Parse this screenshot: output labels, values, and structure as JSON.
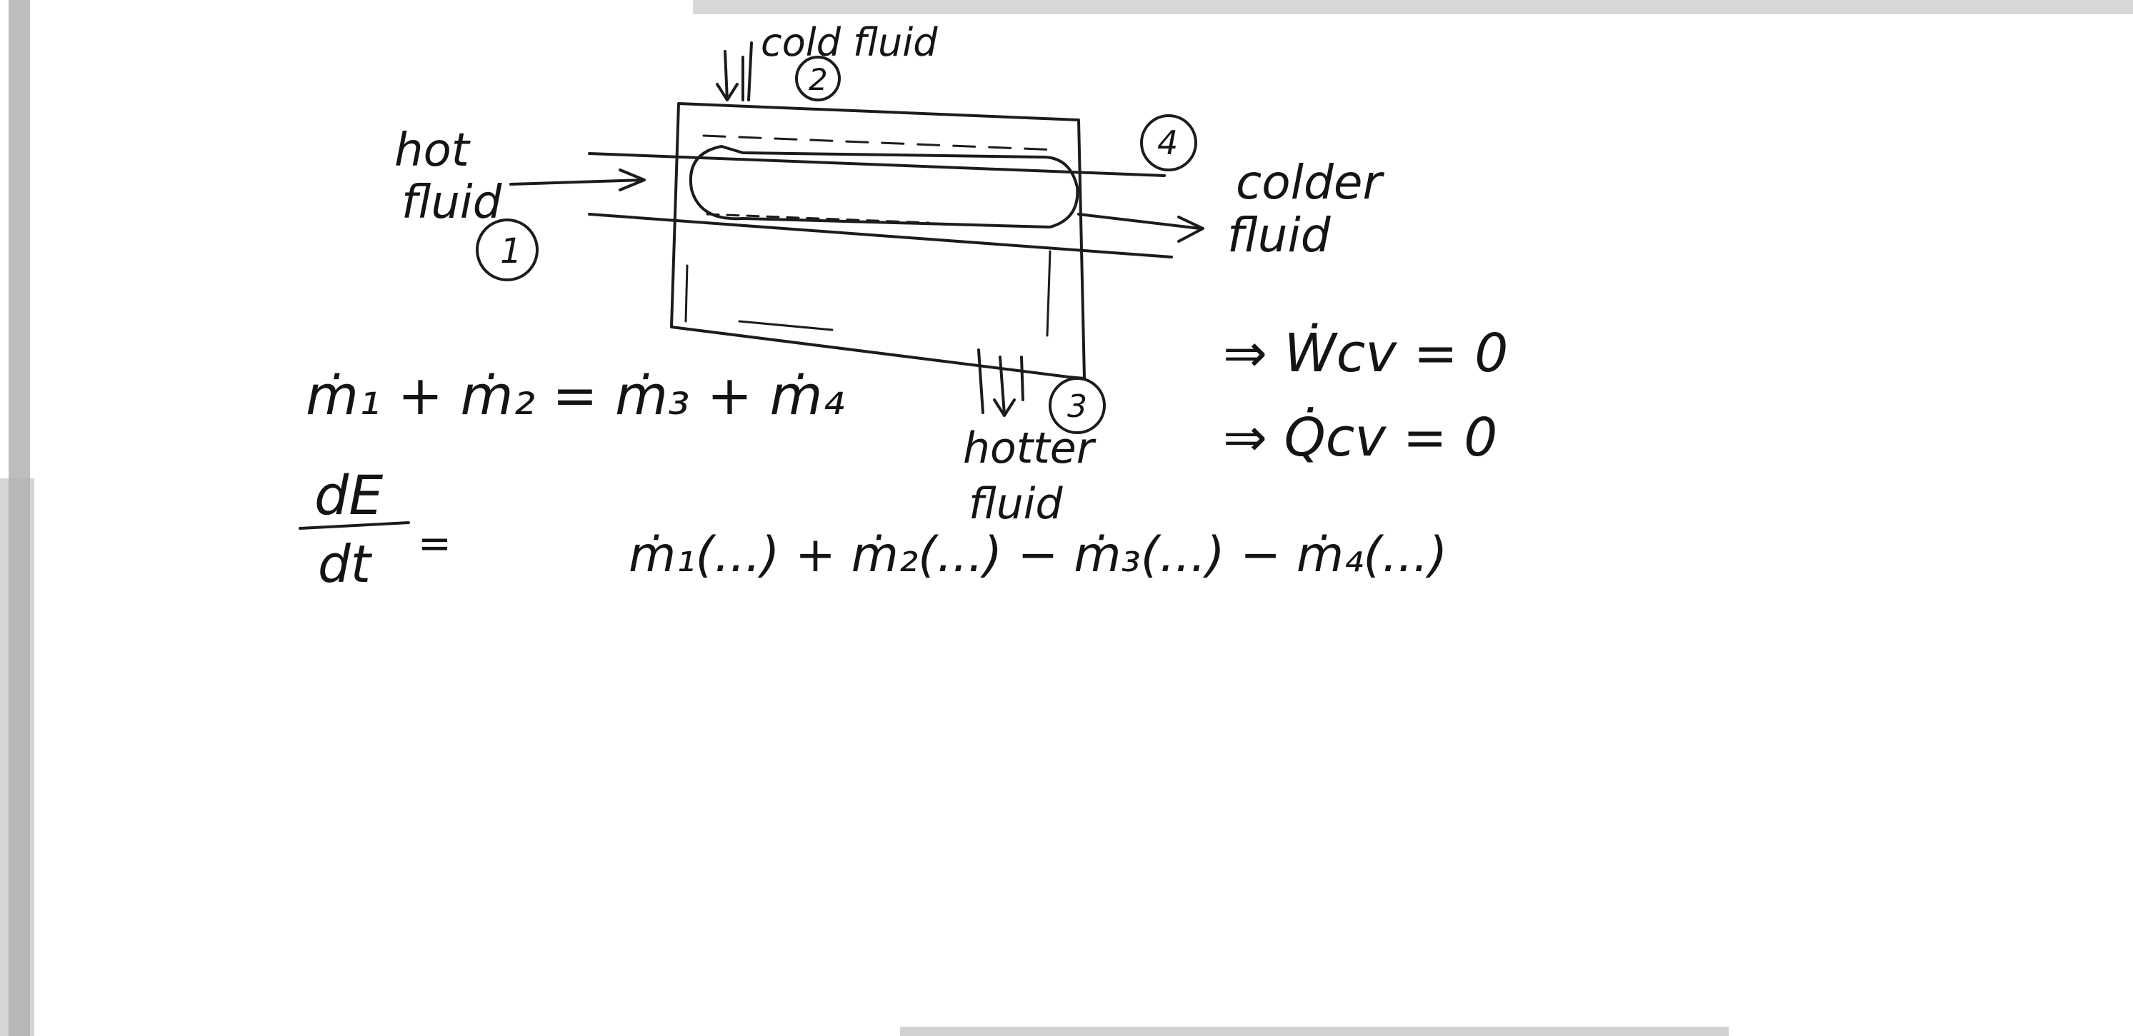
{
  "labels": {
    "cold_fluid": "cold fluid",
    "hot_fluid_1": "hot",
    "hot_fluid_2": "fluid",
    "colder_fluid_1": "colder",
    "colder_fluid_2": "fluid",
    "hotter_fluid_1": "hotter",
    "hotter_fluid_2": "fluid",
    "state_1": "1",
    "state_2": "2",
    "state_3": "3",
    "state_4": "4"
  },
  "equations": {
    "mass_balance": "ṁ₁ + ṁ₂ = ṁ₃ + ṁ₄",
    "energy_lhs_num": "dE",
    "energy_lhs_den": "dt",
    "energy_equals": "=",
    "energy_rhs": "ṁ₁(...) + ṁ₂(...) − ṁ₃(...) − ṁ₄(...)",
    "work_zero": "⇒ Ẇcv = 0",
    "heat_zero": "⇒ Q̇cv = 0"
  },
  "colors": {
    "ink": "#141414",
    "paper": "#ffffff",
    "edge_shadow": "#9a9a9a"
  }
}
